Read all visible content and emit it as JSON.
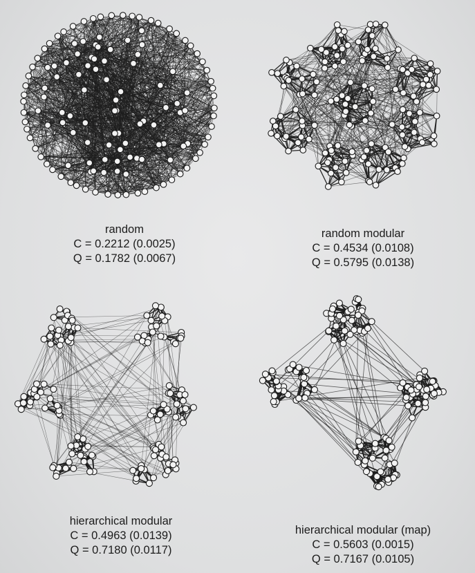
{
  "panels": [
    {
      "id": "random",
      "title": "random",
      "c_line": "C = 0.2212 (0.0025)",
      "q_line": "Q = 0.1782 (0.0067)"
    },
    {
      "id": "random-modular",
      "title": "random modular",
      "c_line": "C = 0.4534 (0.0108)",
      "q_line": "Q = 0.5795 (0.0138)"
    },
    {
      "id": "hierarchical-modular",
      "title": "hierarchical modular",
      "c_line": "C = 0.4963 (0.0139)",
      "q_line": "Q = 0.7180 (0.0117)"
    },
    {
      "id": "hierarchical-modular-map",
      "title": "hierarchical modular (map)",
      "c_line": "C = 0.5603 (0.0015)",
      "q_line": "Q = 0.7167 (0.0105)"
    }
  ],
  "colors": {
    "node_fill": "#f2f2f2",
    "node_stroke": "#1a1a1a",
    "edge": "#1e1e1e",
    "text": "#1c1c1c"
  }
}
